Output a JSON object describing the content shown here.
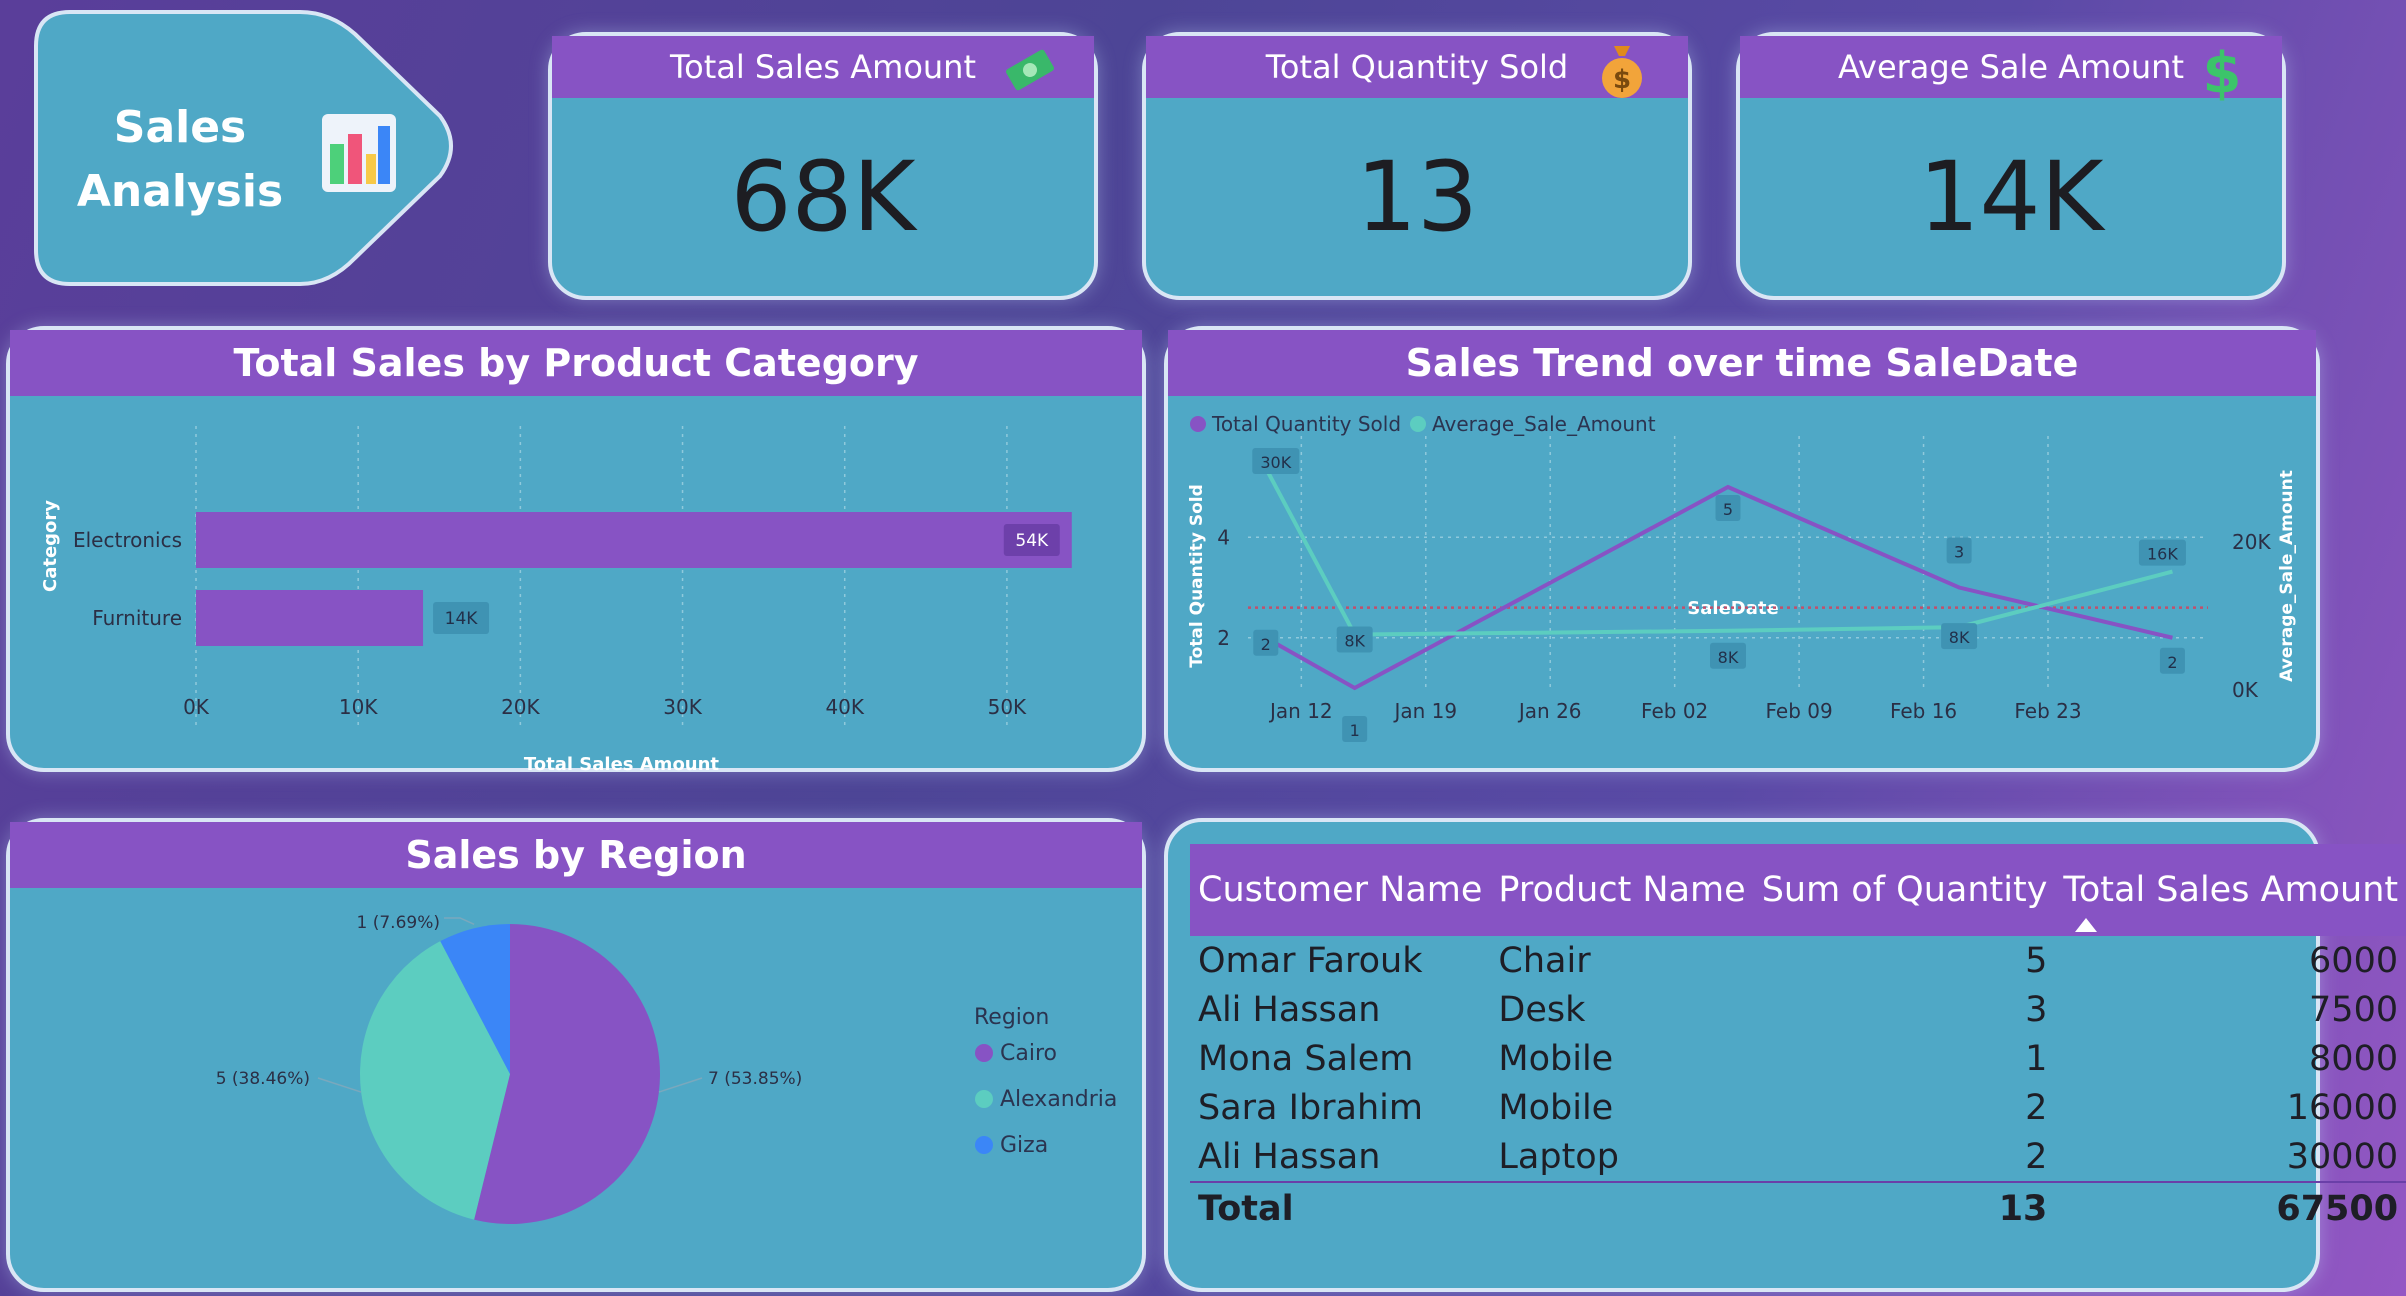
{
  "title_card": {
    "line1": "Sales",
    "line2": "Analysis",
    "icon": "bar-chart-icon"
  },
  "kpis": [
    {
      "label": "Total Sales Amount",
      "value": "68K",
      "icon": "money-bill-icon"
    },
    {
      "label": "Total Quantity Sold",
      "value": "13",
      "icon": "money-bag-icon"
    },
    {
      "label": "Average Sale Amount",
      "value": "14K",
      "icon": "dollar-sign-icon"
    }
  ],
  "colors": {
    "purple": "#8753c4",
    "teal": "#5ccdc0",
    "blue": "#3b86f7",
    "card": "#4fa8c6"
  },
  "chart_data": [
    {
      "type": "bar",
      "orientation": "horizontal",
      "title": "Total Sales by Product Category",
      "categories": [
        "Electronics",
        "Furniture"
      ],
      "values": [
        54000,
        14000
      ],
      "data_labels": [
        "54K",
        "14K"
      ],
      "xlabel": "Total Sales Amount",
      "ylabel": "Category",
      "xlim": [
        0,
        55000
      ],
      "x_ticks": [
        "0K",
        "10K",
        "20K",
        "30K",
        "40K",
        "50K"
      ],
      "grid": true
    },
    {
      "type": "line",
      "title": "Sales Trend over time SaleDate",
      "xlabel": "SaleDate",
      "ylabel_left": "Total Quantity Sold",
      "ylabel_right": "Average_Sale_Amount",
      "x_ticks": [
        "Jan 12",
        "Jan 19",
        "Jan 26",
        "Feb 02",
        "Feb 09",
        "Feb 16",
        "Feb 23"
      ],
      "y_left_ticks": [
        "2",
        "4"
      ],
      "y_right_ticks": [
        "0K",
        "20K"
      ],
      "legend": "top-left",
      "series": [
        {
          "name": "Total Quantity Sold",
          "axis": "left",
          "x": [
            "2025-01-10",
            "2025-01-15",
            "2025-02-05",
            "2025-02-18",
            "2025-03-02"
          ],
          "values": [
            2,
            1,
            5,
            3,
            2
          ],
          "labels": [
            "2",
            "1",
            "5",
            "3",
            "2"
          ]
        },
        {
          "name": "Average_Sale_Amount",
          "axis": "right",
          "x": [
            "2025-01-10",
            "2025-01-15",
            "2025-02-05",
            "2025-02-18",
            "2025-03-02"
          ],
          "values": [
            30000,
            7500,
            8000,
            8500,
            16000
          ],
          "labels": [
            "30K",
            "8K",
            "8K",
            "8K",
            "16K"
          ]
        }
      ],
      "reference_line": {
        "axis": "left",
        "value": 2.6
      }
    },
    {
      "type": "pie",
      "title": "Sales by Region",
      "legend_title": "Region",
      "legend": "right",
      "slices": [
        {
          "name": "Cairo",
          "value": 7,
          "label": "7 (53.85%)"
        },
        {
          "name": "Alexandria",
          "value": 5,
          "label": "5 (38.46%)"
        },
        {
          "name": "Giza",
          "value": 1,
          "label": "1 (7.69%)"
        }
      ]
    }
  ],
  "table": {
    "columns": [
      "Customer Name",
      "Product Name",
      "Sum of Quantity",
      "Total Sales Amount"
    ],
    "rows": [
      [
        "Omar Farouk",
        "Chair",
        "5",
        "6000"
      ],
      [
        "Ali Hassan",
        "Desk",
        "3",
        "7500"
      ],
      [
        "Mona Salem",
        "Mobile",
        "1",
        "8000"
      ],
      [
        "Sara Ibrahim",
        "Mobile",
        "2",
        "16000"
      ],
      [
        "Ali Hassan",
        "Laptop",
        "2",
        "30000"
      ]
    ],
    "total": {
      "label": "Total",
      "quantity": "13",
      "amount": "67500"
    }
  }
}
